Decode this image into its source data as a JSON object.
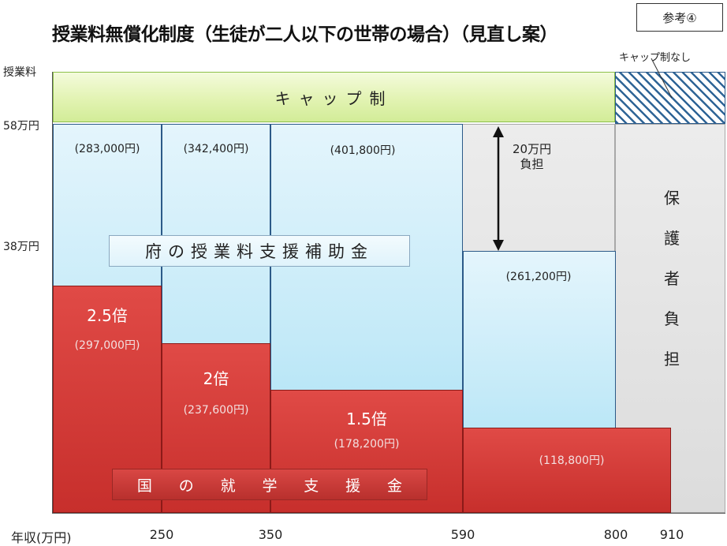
{
  "title": "授業料無償化制度（生徒が二人以下の世帯の場合）（見直し案）",
  "badge": "参考④",
  "y_axis": {
    "unit_label": "授業料",
    "tick_58": "58万円",
    "tick_38": "38万円"
  },
  "x_axis": {
    "unit_label": "年収(万円)",
    "ticks": [
      "250",
      "350",
      "590",
      "800",
      "910"
    ]
  },
  "cap": {
    "label": "キャップ制",
    "nocap_label": "キャップ制なし"
  },
  "prefecture": {
    "label": "府の授業料支援補助金",
    "amounts": [
      "(283,000円)",
      "(342,400円)",
      "(401,800円)",
      "(261,200円)"
    ]
  },
  "national": {
    "label_chars": [
      "国",
      "の",
      "就",
      "学",
      "支",
      "援",
      "金"
    ],
    "multipliers": [
      "2.5倍",
      "2倍",
      "1.5倍"
    ],
    "amounts": [
      "(297,000円)",
      "(237,600円)",
      "(178,200円)",
      "(118,800円)"
    ]
  },
  "guardian": {
    "chars": [
      "保",
      "護",
      "者",
      "負",
      "担"
    ],
    "burden_line1": "20万円",
    "burden_line2": "負担"
  },
  "colors": {
    "red": "#d43c39",
    "light_blue": "#c4eaf8",
    "lime": "#e2f3b2",
    "hatch_blue": "#2e6496",
    "gray": "#e4e4e4"
  }
}
